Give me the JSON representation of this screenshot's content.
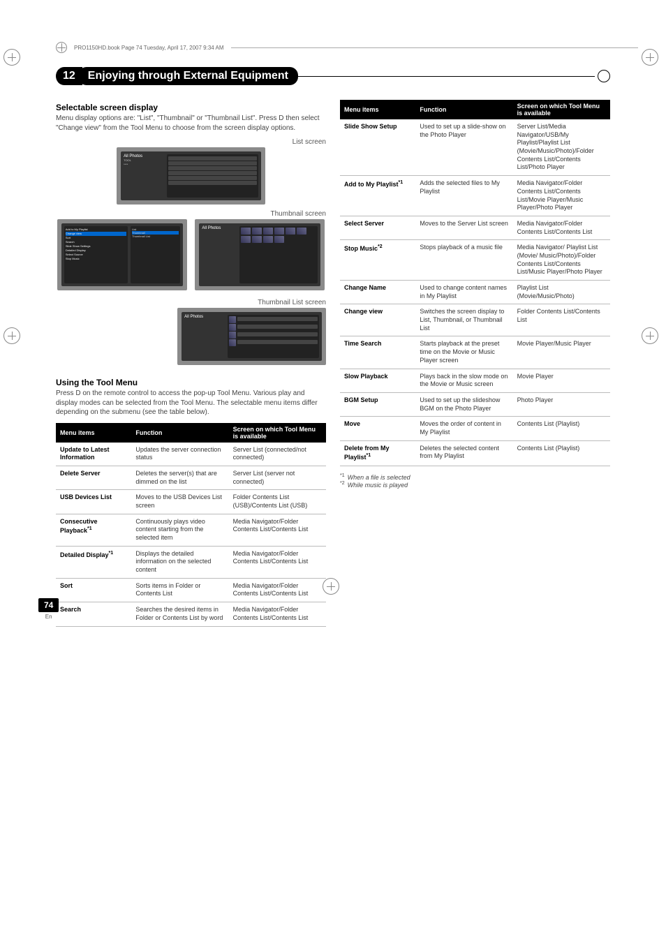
{
  "book_header": "PRO1150HD.book  Page 74  Tuesday, April 17, 2007  9:34 AM",
  "chapter": {
    "num": "12",
    "title": "Enjoying through External Equipment"
  },
  "sec1_title": "Selectable screen display",
  "sec1_body": "Menu display options are: \"List\", \"Thumbnail\" or \"Thumbnail List\". Press D then select \"Change view\" from the Tool Menu to choose from the screen display options.",
  "labels": {
    "list": "List screen",
    "thumb": "Thumbnail screen",
    "thumblist": "Thumbnail List screen"
  },
  "ss_mock": {
    "title": "All Photos",
    "menu_items": [
      "Add to My Playlist",
      "Change view",
      "Sort",
      "Search",
      "Slide Show Settings",
      "Detailed Display",
      "Select Source",
      "Stop Music"
    ],
    "view_items": [
      "List",
      "Thumbnail",
      "Thumbnail List"
    ]
  },
  "sec2_title": "Using the Tool Menu",
  "sec2_body": "Press D on the remote control to access the pop-up Tool Menu. Various play and display modes can be selected from the Tool Menu. The selectable menu items differ depending on the submenu (see the table below).",
  "table_headers": {
    "items": "Menu items",
    "func": "Function",
    "screen": "Screen on which Tool Menu is available"
  },
  "table1": [
    {
      "name": "Update to Latest Information",
      "func": "Updates the server connection status",
      "screen": "Server List (connected/not connected)"
    },
    {
      "name": "Delete Server",
      "func": "Deletes the server(s) that are dimmed on the list",
      "screen": "Server List (server not connected)"
    },
    {
      "name": "USB Devices List",
      "func": "Moves to the USB Devices List screen",
      "screen": "Folder Contents List (USB)/Contents List (USB)"
    },
    {
      "name": "Consecutive Playback",
      "sup": "*1",
      "func": "Continuously plays video content starting from the selected item",
      "screen": "Media Navigator/Folder Contents List/Contents List"
    },
    {
      "name": "Detailed Display",
      "sup": "*1",
      "func": "Displays the detailed information on the selected content",
      "screen": "Media Navigator/Folder Contents List/Contents List"
    },
    {
      "name": "Sort",
      "func": "Sorts items in Folder or Contents List",
      "screen": "Media Navigator/Folder Contents List/Contents List"
    },
    {
      "name": "Search",
      "func": "Searches the desired items in Folder or Contents List by word",
      "screen": "Media Navigator/Folder Contents List/Contents List"
    }
  ],
  "table2": [
    {
      "name": "Slide Show Setup",
      "func": "Used to set up a slide-show on the Photo Player",
      "screen": "Server List/Media Navigator/USB/My Playlist/Playlist List (Movie/Music/Photo)/Folder Contents List/Contents List/Photo Player"
    },
    {
      "name": "Add to My Playlist",
      "sup": "*1",
      "func": "Adds the selected files to My Playlist",
      "screen": "Media Navigator/Folder Contents List/Contents List/Movie Player/Music Player/Photo Player"
    },
    {
      "name": "Select Server",
      "func": "Moves to the Server List screen",
      "screen": "Media Navigator/Folder Contents List/Contents List"
    },
    {
      "name": "Stop Music",
      "sup": "*2",
      "func": "Stops playback of a music file",
      "screen": "Media Navigator/ Playlist List (Movie/ Music/Photo)/Folder Contents List/Contents List/Music Player/Photo Player"
    },
    {
      "name": "Change Name",
      "func": "Used to change content names in My Playlist",
      "screen": "Playlist List (Movie/Music/Photo)"
    },
    {
      "name": "Change view",
      "func": "Switches the screen display to List, Thumbnail, or Thumbnail List",
      "screen": "Folder Contents List/Contents List"
    },
    {
      "name": "Time Search",
      "func": "Starts playback at the preset time on the Movie or Music Player screen",
      "screen": "Movie Player/Music Player"
    },
    {
      "name": "Slow Playback",
      "func": "Plays back in the slow mode on the Movie or Music screen",
      "screen": "Movie Player"
    },
    {
      "name": "BGM Setup",
      "func": "Used to set up the slideshow BGM on the Photo Player",
      "screen": "Photo Player"
    },
    {
      "name": "Move",
      "func": "Moves the order of content in My Playlist",
      "screen": "Contents List (Playlist)"
    },
    {
      "name": "Delete from My Playlist",
      "sup": "*1",
      "func": "Deletes the selected content from My Playlist",
      "screen": "Contents List (Playlist)"
    }
  ],
  "footnotes": {
    "f1_mark": "*1",
    "f1_text": "When a file is selected",
    "f2_mark": "*2",
    "f2_text": "While music is played"
  },
  "page": {
    "num": "74",
    "lang": "En"
  }
}
